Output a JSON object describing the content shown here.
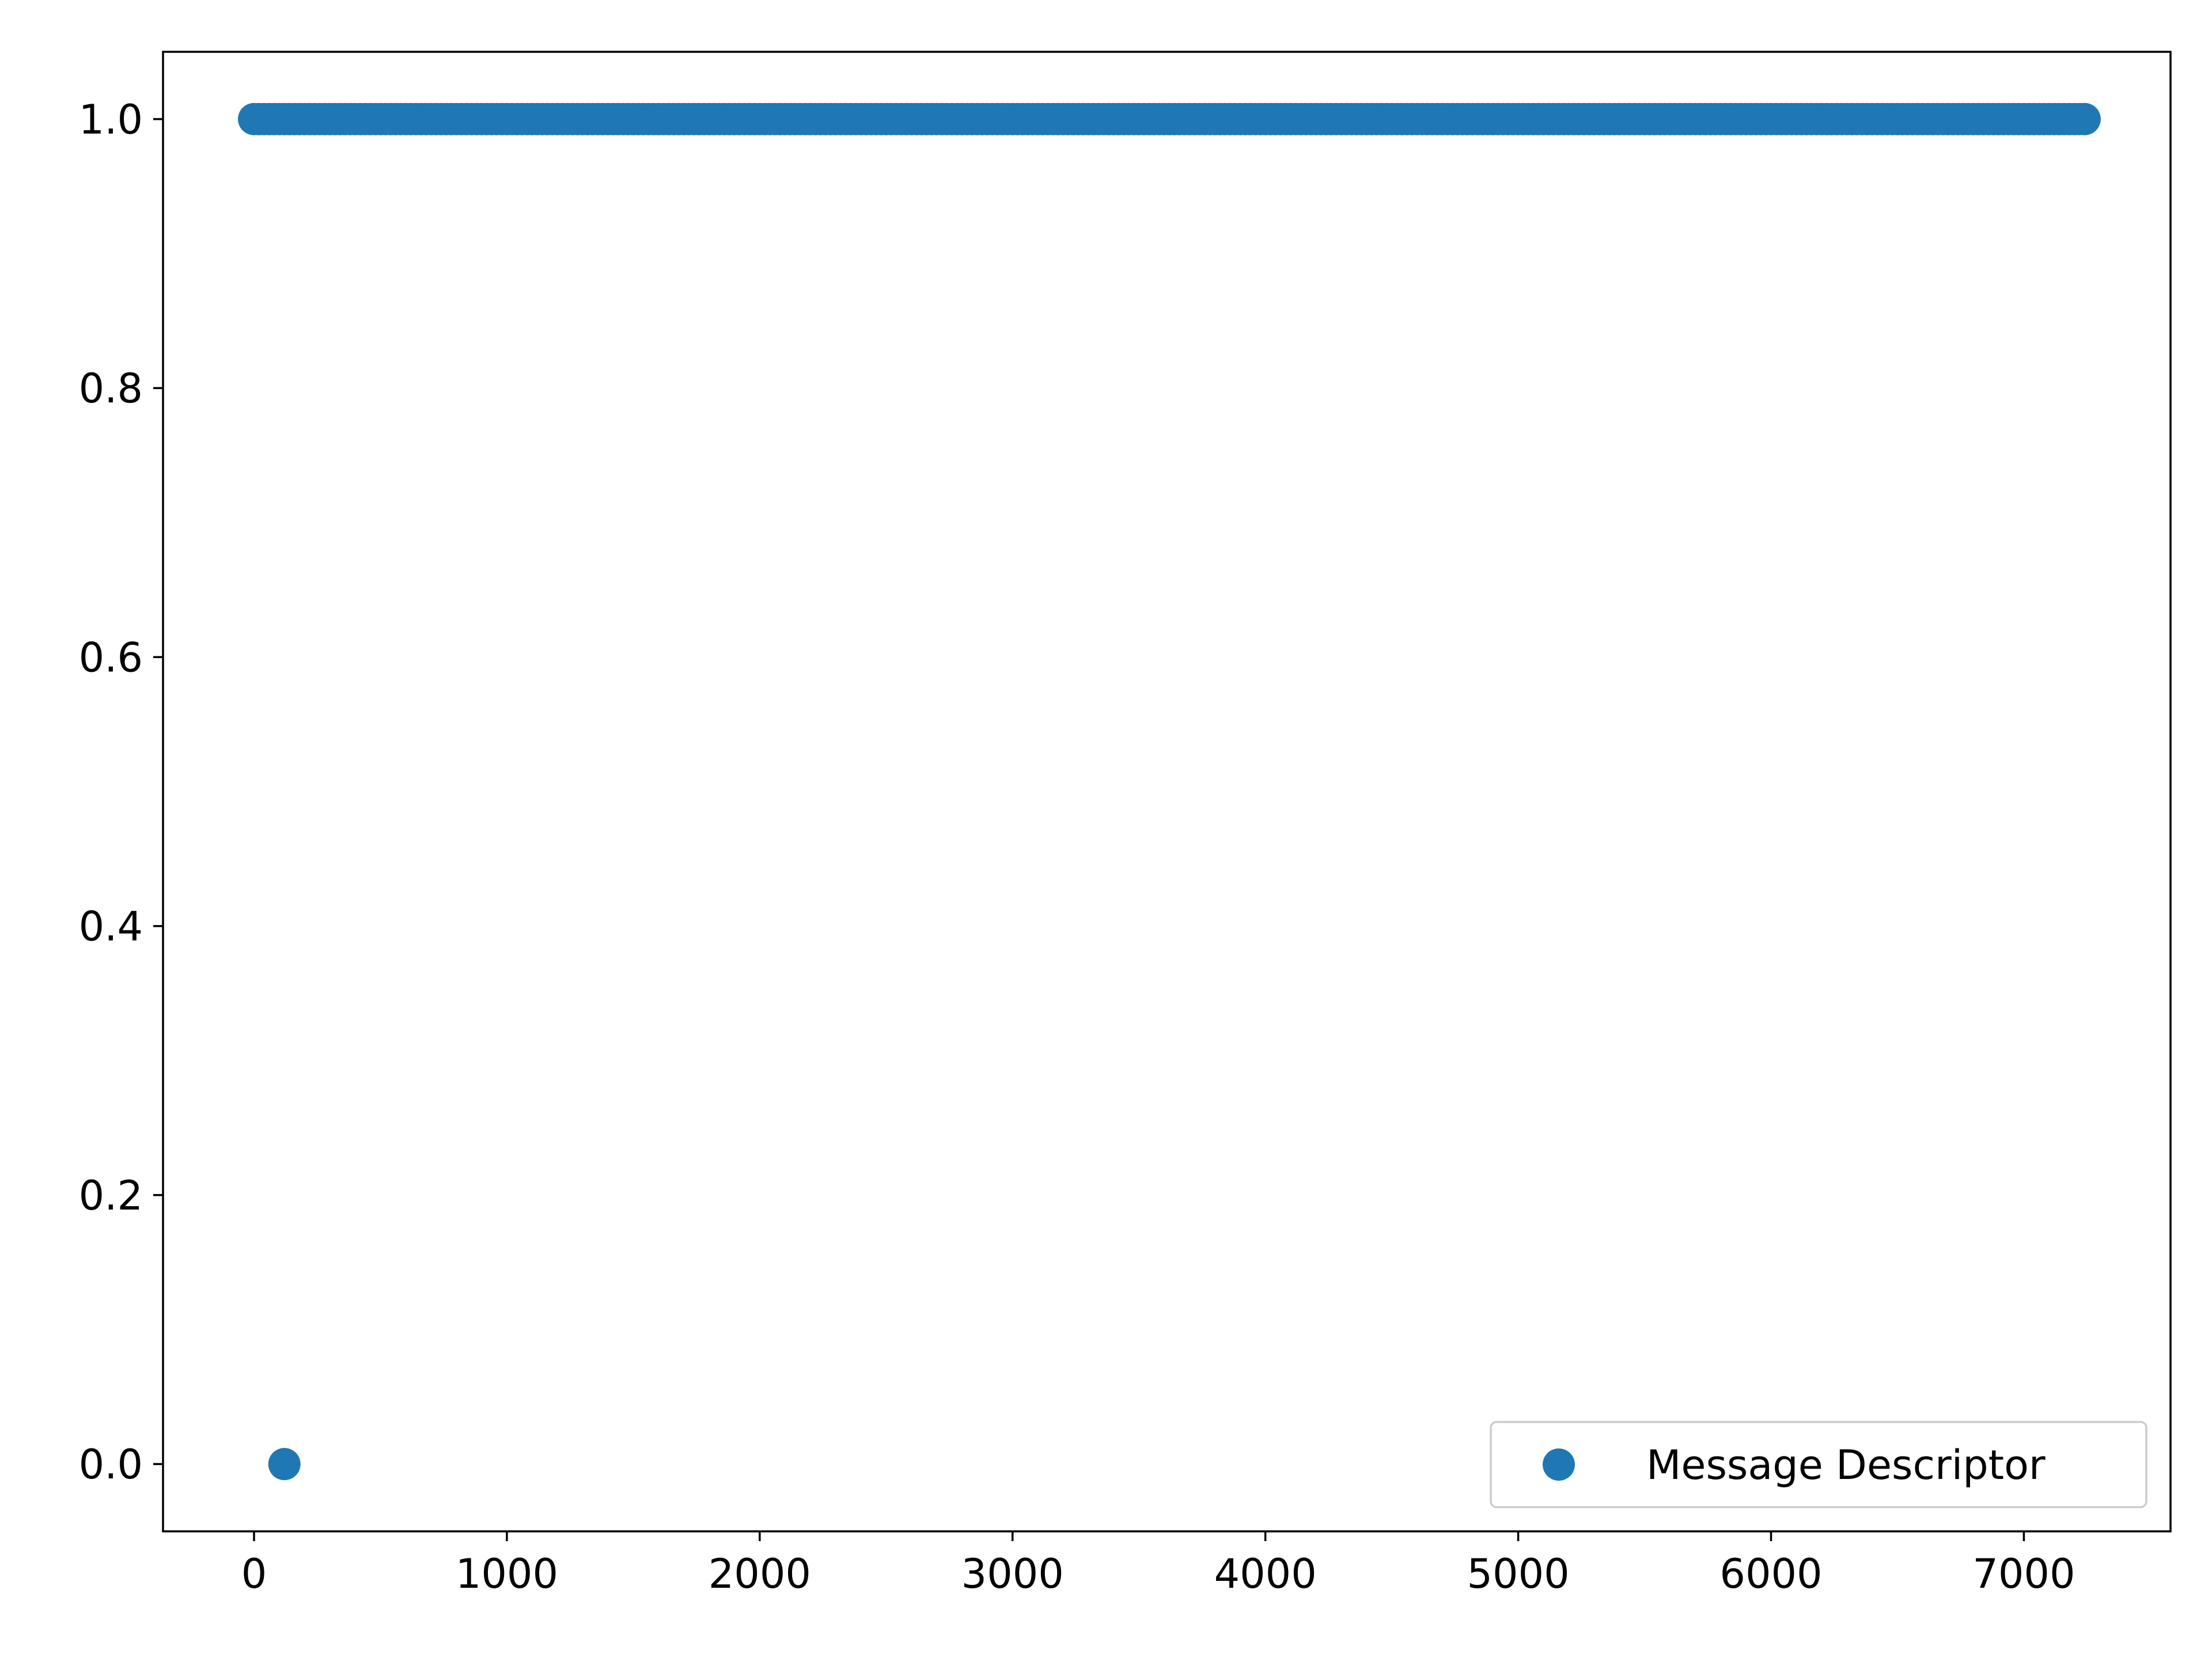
{
  "chart_data": {
    "type": "scatter",
    "title": "",
    "xlabel": "",
    "ylabel": "",
    "xlim": [
      -360,
      7580
    ],
    "ylim": [
      -0.05,
      1.05
    ],
    "x_ticks": [
      0,
      1000,
      2000,
      3000,
      4000,
      5000,
      6000,
      7000
    ],
    "x_tick_labels": [
      "0",
      "1000",
      "2000",
      "3000",
      "4000",
      "5000",
      "6000",
      "7000"
    ],
    "y_ticks": [
      0.0,
      0.2,
      0.4,
      0.6,
      0.8,
      1.0
    ],
    "y_tick_labels": [
      "0.0",
      "0.2",
      "0.4",
      "0.6",
      "0.8",
      "1.0"
    ],
    "grid": false,
    "legend_position": "lower-right",
    "series": [
      {
        "name": "Message Descriptor",
        "color": "#1f77b4",
        "marker": "circle",
        "points": [
          {
            "x": 120,
            "y": 0.0
          }
        ],
        "dense_run": {
          "x_start": 0,
          "x_end": 7240,
          "y": 1.0
        }
      }
    ]
  }
}
